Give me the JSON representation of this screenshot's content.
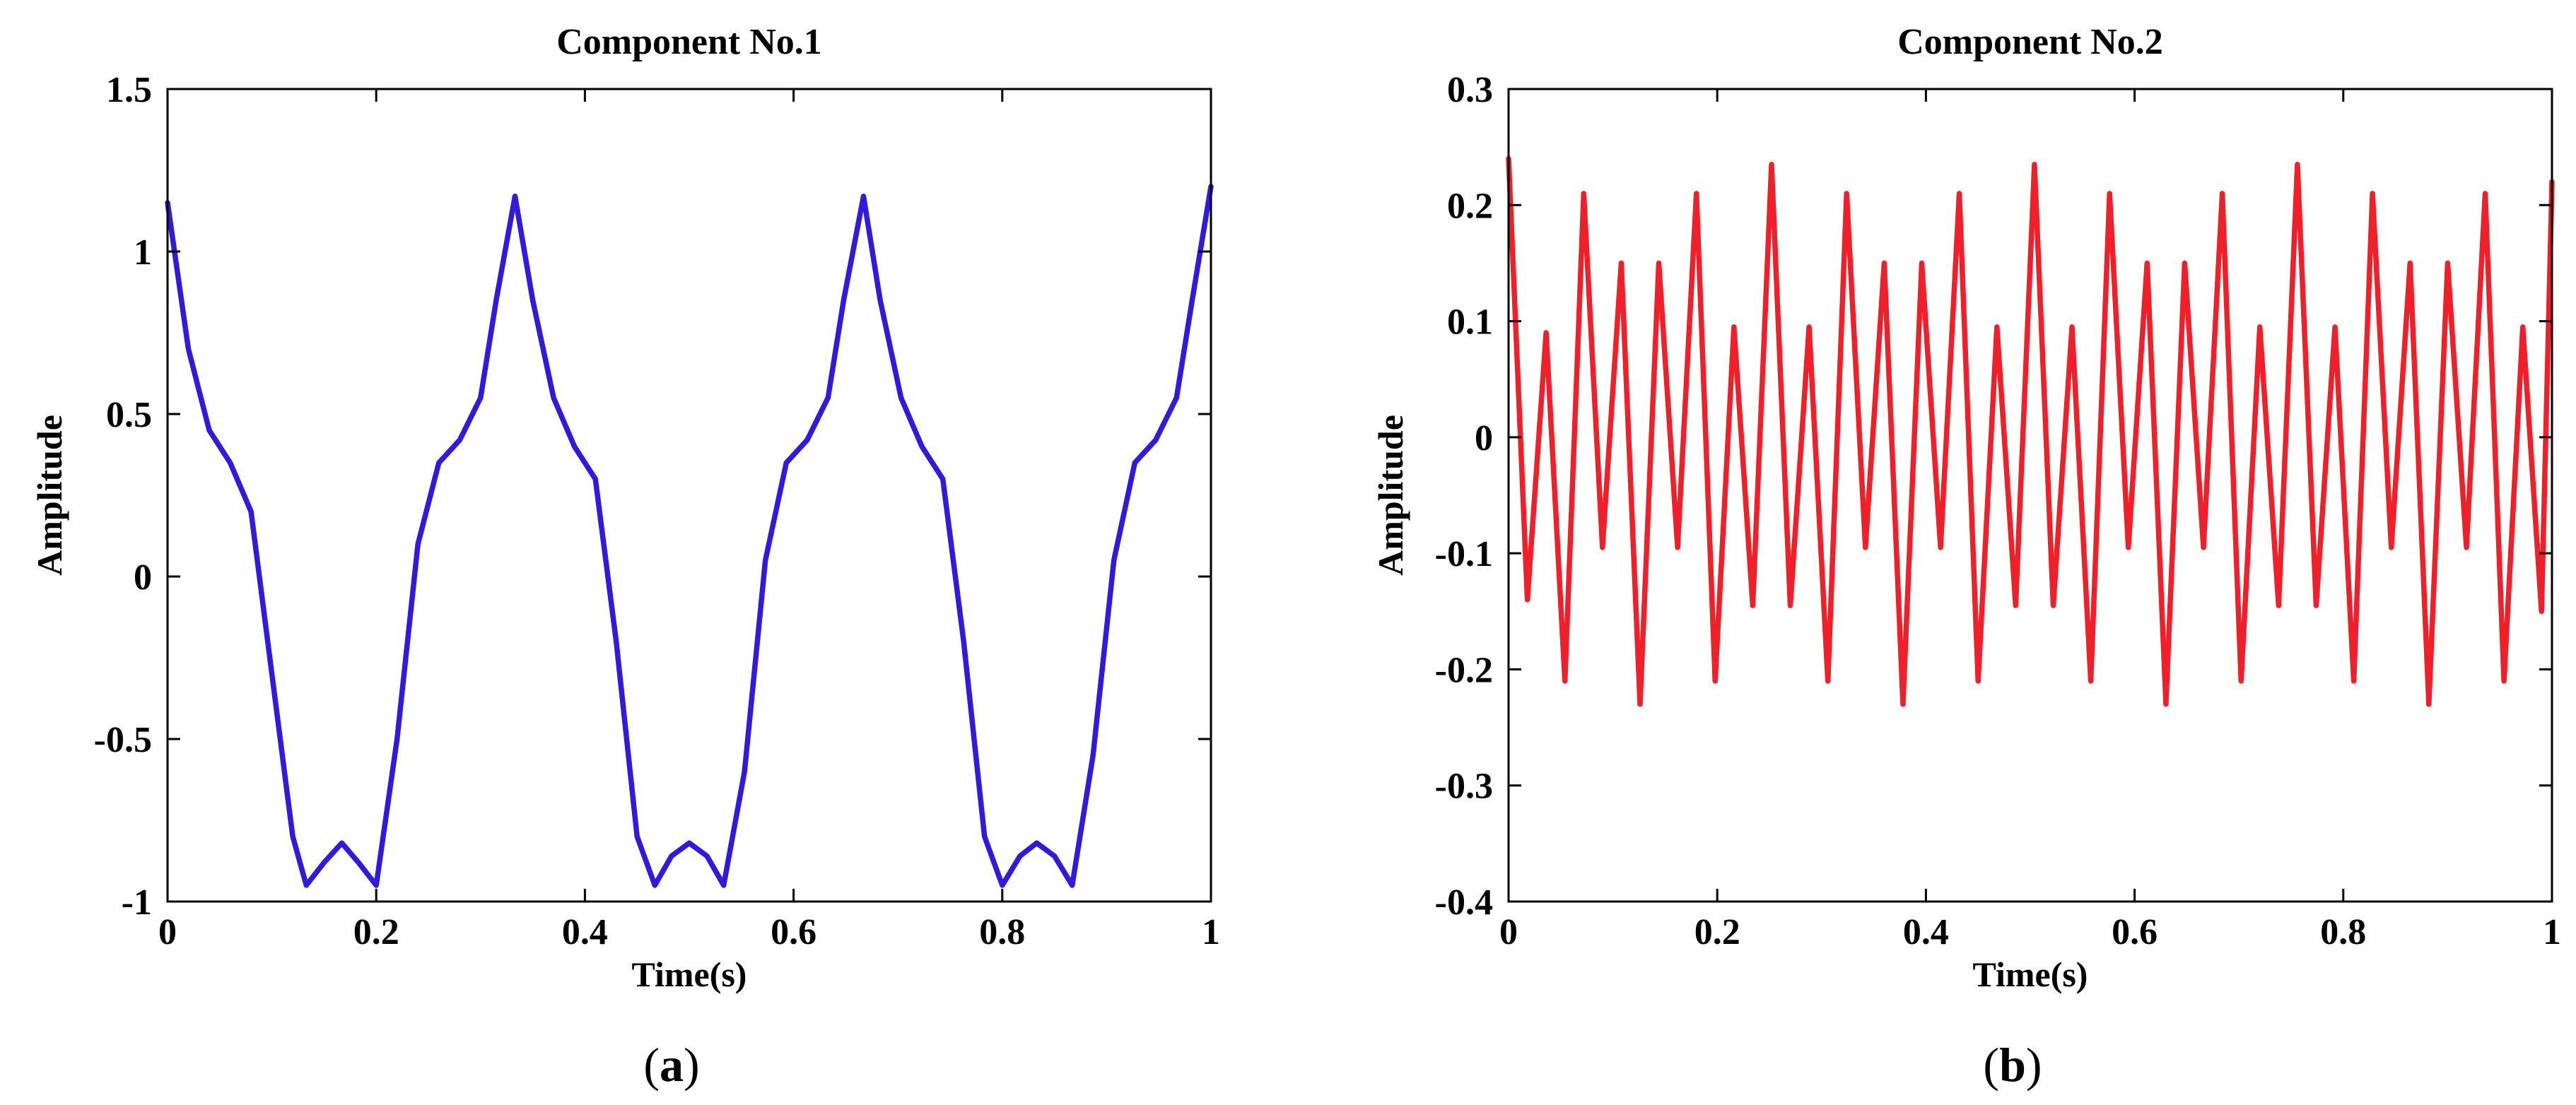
{
  "chart_data": [
    {
      "type": "line",
      "panel_label": "a",
      "title": "Component No.1",
      "xlabel": "Time(s)",
      "ylabel": "Amplitude",
      "xlim": [
        0,
        1
      ],
      "ylim": [
        -1,
        1.5
      ],
      "xticks": [
        0,
        0.2,
        0.4,
        0.6,
        0.8,
        1
      ],
      "xtick_labels": [
        "0",
        "0.2",
        "0.4",
        "0.6",
        "0.8",
        "1"
      ],
      "yticks": [
        -1,
        -0.5,
        0,
        0.5,
        1,
        1.5
      ],
      "ytick_labels": [
        "-1",
        "-0.5",
        "0",
        "0.5",
        "1",
        "1.5"
      ],
      "grid": false,
      "series": [
        {
          "color": "#2f1ae0",
          "x": [
            0,
            0.02,
            0.04,
            0.06,
            0.08,
            0.1,
            0.12,
            0.133,
            0.15,
            0.167,
            0.183,
            0.2,
            0.22,
            0.24,
            0.26,
            0.28,
            0.3,
            0.315,
            0.333,
            0.35,
            0.37,
            0.39,
            0.41,
            0.43,
            0.45,
            0.467,
            0.483,
            0.5,
            0.517,
            0.533,
            0.553,
            0.573,
            0.593,
            0.613,
            0.633,
            0.648,
            0.667,
            0.683,
            0.703,
            0.723,
            0.743,
            0.763,
            0.783,
            0.8,
            0.817,
            0.833,
            0.85,
            0.867,
            0.887,
            0.907,
            0.927,
            0.947,
            0.967,
            0.982,
            1
          ],
          "y": [
            1.15,
            0.7,
            0.45,
            0.35,
            0.2,
            -0.3,
            -0.8,
            -0.95,
            -0.88,
            -0.82,
            -0.88,
            -0.95,
            -0.5,
            0.1,
            0.35,
            0.42,
            0.55,
            0.85,
            1.17,
            0.85,
            0.55,
            0.4,
            0.3,
            -0.2,
            -0.8,
            -0.95,
            -0.86,
            -0.82,
            -0.86,
            -0.95,
            -0.6,
            0.05,
            0.35,
            0.42,
            0.55,
            0.85,
            1.17,
            0.85,
            0.55,
            0.4,
            0.3,
            -0.2,
            -0.8,
            -0.95,
            -0.86,
            -0.82,
            -0.86,
            -0.95,
            -0.55,
            0.05,
            0.35,
            0.42,
            0.55,
            0.85,
            1.2
          ]
        }
      ]
    },
    {
      "type": "line",
      "panel_label": "b",
      "title": "Component No.2",
      "xlabel": "Time(s)",
      "ylabel": "Amplitude",
      "xlim": [
        0,
        1
      ],
      "ylim": [
        -0.4,
        0.3
      ],
      "xticks": [
        0,
        0.2,
        0.4,
        0.6,
        0.8,
        1
      ],
      "xtick_labels": [
        "0",
        "0.2",
        "0.4",
        "0.6",
        "0.8",
        "1"
      ],
      "yticks": [
        -0.4,
        -0.3,
        -0.2,
        -0.1,
        0,
        0.1,
        0.2,
        0.3
      ],
      "ytick_labels": [
        "-0.4",
        "-0.3",
        "-0.2",
        "-0.1",
        "0",
        "0.1",
        "0.2",
        "0.3"
      ],
      "grid": false,
      "series": [
        {
          "color": "#f0202a",
          "x": [
            0,
            0.018,
            0.036,
            0.054,
            0.072,
            0.09,
            0.108,
            0.126,
            0.144,
            0.162,
            0.18,
            0.198,
            0.216,
            0.234,
            0.252,
            0.27,
            0.288,
            0.306,
            0.324,
            0.342,
            0.36,
            0.378,
            0.396,
            0.414,
            0.432,
            0.45,
            0.468,
            0.486,
            0.504,
            0.522,
            0.54,
            0.558,
            0.576,
            0.594,
            0.612,
            0.63,
            0.648,
            0.666,
            0.684,
            0.702,
            0.72,
            0.738,
            0.756,
            0.774,
            0.792,
            0.81,
            0.828,
            0.846,
            0.864,
            0.882,
            0.9,
            0.918,
            0.936,
            0.954,
            0.972,
            0.99,
            1
          ],
          "y": [
            0.24,
            -0.14,
            0.09,
            -0.21,
            0.21,
            -0.095,
            0.15,
            -0.23,
            0.15,
            -0.095,
            0.21,
            -0.21,
            0.095,
            -0.145,
            0.235,
            -0.145,
            0.095,
            -0.21,
            0.21,
            -0.095,
            0.15,
            -0.23,
            0.15,
            -0.095,
            0.21,
            -0.21,
            0.095,
            -0.145,
            0.235,
            -0.145,
            0.095,
            -0.21,
            0.21,
            -0.095,
            0.15,
            -0.23,
            0.15,
            -0.095,
            0.21,
            -0.21,
            0.095,
            -0.145,
            0.235,
            -0.145,
            0.095,
            -0.21,
            0.21,
            -0.095,
            0.15,
            -0.23,
            0.15,
            -0.095,
            0.21,
            -0.21,
            0.095,
            -0.15,
            0.22
          ]
        }
      ]
    }
  ]
}
